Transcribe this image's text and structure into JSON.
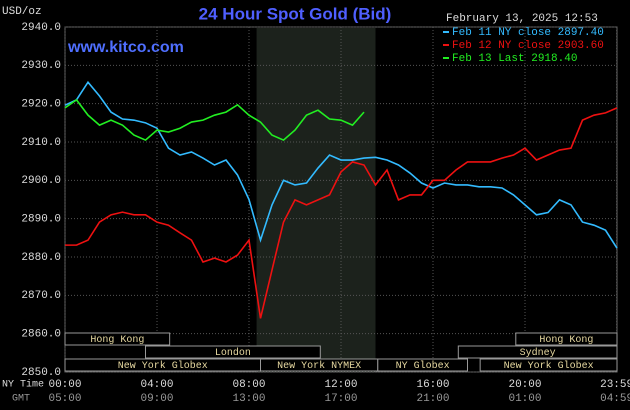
{
  "chart_data": {
    "type": "line",
    "title": "24 Hour Spot Gold (Bid)",
    "watermark": "www.kitco.com",
    "timestamp": "February 13, 2025 12:53",
    "y_label": "USD/oz",
    "x_label": "NY Time",
    "x2_label": "GMT",
    "x": [
      0,
      0.5,
      1,
      1.5,
      2,
      2.5,
      3,
      3.5,
      4,
      4.5,
      5,
      5.5,
      6,
      6.5,
      7,
      7.5,
      8,
      8.5,
      9,
      9.5,
      10,
      10.5,
      11,
      11.5,
      12,
      12.5,
      13,
      13.5,
      14,
      14.5,
      15,
      15.5,
      16,
      16.5,
      17,
      17.5,
      18,
      18.5,
      19,
      19.5,
      20,
      20.5,
      21,
      21.5,
      22,
      22.5,
      23,
      23.5,
      24
    ],
    "series": [
      {
        "name": "Feb 11 NY close 2897.40",
        "color": "#33bbff",
        "values": [
          2919.6,
          2921,
          2925.6,
          2922,
          2917.8,
          2916,
          2915.7,
          2915,
          2913.6,
          2908.4,
          2906.6,
          2907.4,
          2905.8,
          2904,
          2905.3,
          2901.4,
          2895,
          2884.4,
          2893.6,
          2900,
          2898.8,
          2899.3,
          2903.2,
          2906.6,
          2905.3,
          2905.3,
          2905.8,
          2906,
          2905.3,
          2904,
          2901.9,
          2899.3,
          2898,
          2899.3,
          2898.8,
          2898.8,
          2898.3,
          2898.3,
          2898,
          2896.2,
          2893.6,
          2891,
          2891.6,
          2894.9,
          2893.6,
          2889.1,
          2888.3,
          2887,
          2882.3
        ]
      },
      {
        "name": "Feb 12 NY close 2903.60",
        "color": "#ee1111",
        "values": [
          2883.1,
          2883.1,
          2884.4,
          2889.1,
          2891,
          2891.7,
          2891,
          2891,
          2889.1,
          2888.3,
          2886.3,
          2884.4,
          2878.7,
          2879.7,
          2878.7,
          2880.5,
          2884.4,
          2864,
          2876.6,
          2889.1,
          2894.9,
          2893.6,
          2894.9,
          2896.2,
          2902.2,
          2904.8,
          2904,
          2898.8,
          2902.7,
          2894.9,
          2896.2,
          2896.2,
          2900,
          2900,
          2902.7,
          2904.8,
          2904.8,
          2904.8,
          2905.8,
          2906.6,
          2908.4,
          2905.3,
          2906.6,
          2907.9,
          2908.4,
          2915.7,
          2917,
          2917.6,
          2918.9
        ]
      },
      {
        "name": "Feb 13 Last 2918.40",
        "color": "#22ee22",
        "values": [
          2918.9,
          2921,
          2917,
          2914.4,
          2915.7,
          2914.4,
          2911.8,
          2910.5,
          2913.1,
          2912.6,
          2913.6,
          2915.2,
          2915.7,
          2917,
          2917.8,
          2919.7,
          2917,
          2915.2,
          2911.8,
          2910.5,
          2913.1,
          2917,
          2918.3,
          2916,
          2915.7,
          2914.4,
          2917.8,
          null,
          null,
          null,
          null,
          null,
          null,
          null,
          null,
          null,
          null,
          null,
          null,
          null,
          null,
          null,
          null,
          null,
          null,
          null,
          null,
          null,
          null
        ]
      }
    ],
    "xlim": [
      0,
      24
    ],
    "xticks": [
      {
        "value": 0,
        "label": "00:00"
      },
      {
        "value": 4,
        "label": "04:00"
      },
      {
        "value": 8,
        "label": "08:00"
      },
      {
        "value": 12,
        "label": "12:00"
      },
      {
        "value": 16,
        "label": "16:00"
      },
      {
        "value": 20,
        "label": "20:00"
      },
      {
        "value": 23.983,
        "label": "23:59"
      }
    ],
    "x2ticks": [
      {
        "value": 0,
        "label": "05:00"
      },
      {
        "value": 4,
        "label": "09:00"
      },
      {
        "value": 8,
        "label": "13:00"
      },
      {
        "value": 12,
        "label": "17:00"
      },
      {
        "value": 16,
        "label": "21:00"
      },
      {
        "value": 20,
        "label": "01:00"
      },
      {
        "value": 23.983,
        "label": "04:59"
      }
    ],
    "ylim": [
      2850,
      2940
    ],
    "yticks": [
      {
        "value": 2850,
        "label": "2850.0"
      },
      {
        "value": 2860,
        "label": "2860.0"
      },
      {
        "value": 2870,
        "label": "2870.0"
      },
      {
        "value": 2880,
        "label": "2880.0"
      },
      {
        "value": 2890,
        "label": "2890.0"
      },
      {
        "value": 2900,
        "label": "2900.0"
      },
      {
        "value": 2910,
        "label": "2910.0"
      },
      {
        "value": 2920,
        "label": "2920.0"
      },
      {
        "value": 2930,
        "label": "2930.0"
      },
      {
        "value": 2940,
        "label": "2940.0"
      }
    ],
    "grid": true,
    "highlight_range": [
      8.33,
      13.5
    ],
    "sessions": [
      [
        {
          "name": "Hong Kong",
          "start": 0,
          "end": 4.55
        },
        {
          "name": "Hong Kong",
          "start": 19.6,
          "end": 24
        }
      ],
      [
        {
          "name": "London",
          "start": 3.5,
          "end": 11.1
        },
        {
          "name": "Sydney",
          "start": 17.1,
          "end": 24
        }
      ],
      [
        {
          "name": "New York Globex",
          "start": 0,
          "end": 8.5
        },
        {
          "name": "New York NYMEX",
          "start": 8.5,
          "end": 13.6
        },
        {
          "name": "NY Globex",
          "start": 13.6,
          "end": 17.5
        },
        {
          "name": "New York Globex",
          "start": 18.05,
          "end": 24
        }
      ]
    ]
  }
}
